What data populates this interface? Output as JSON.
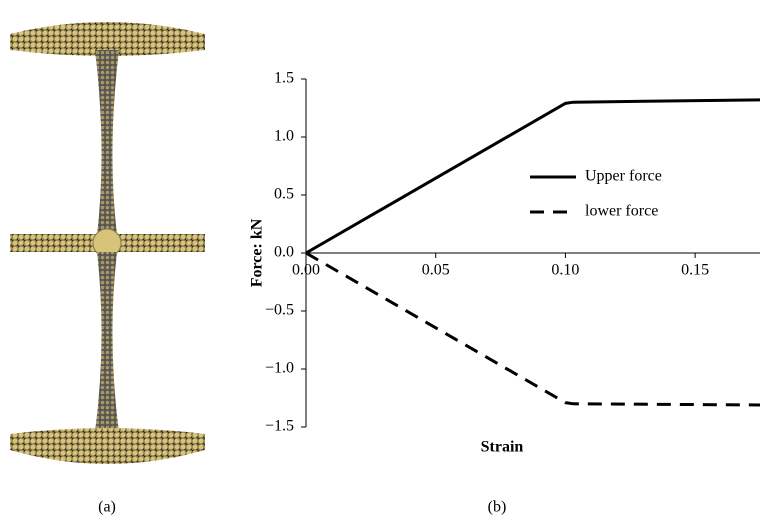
{
  "chart_data": {
    "type": "line",
    "x_label": "Strain",
    "y_label": "Force: kN",
    "x": [
      0,
      0.1,
      0.103,
      0.175
    ],
    "series": [
      {
        "name": "Upper force",
        "color": "#000000",
        "dash": "solid",
        "values": [
          0,
          1.29,
          1.3,
          1.32
        ]
      },
      {
        "name": "lower force",
        "color": "#000000",
        "dash": "dashed",
        "values": [
          0,
          -1.29,
          -1.3,
          -1.31
        ]
      }
    ],
    "xlim": [
      0,
      0.175
    ],
    "xticks": [
      {
        "value": 0,
        "label": "0.00"
      },
      {
        "value": 0.05,
        "label": "0.05"
      },
      {
        "value": 0.1,
        "label": "0.10"
      },
      {
        "value": 0.15,
        "label": "0.15"
      }
    ],
    "ylim": [
      -1.5,
      1.5
    ],
    "yticks": [
      1.5,
      {
        "value": 1,
        "label": "1.0"
      },
      0.5,
      {
        "value": 0,
        "label": "0.0"
      },
      {
        "value": -0.5,
        "label": "−0.5"
      },
      {
        "value": -1,
        "label": "−1.0"
      },
      {
        "value": -1.5,
        "label": "−1.5"
      }
    ],
    "grid": false,
    "legend": "center-right"
  },
  "panel_labels": [
    "(a)",
    "(b)"
  ]
}
